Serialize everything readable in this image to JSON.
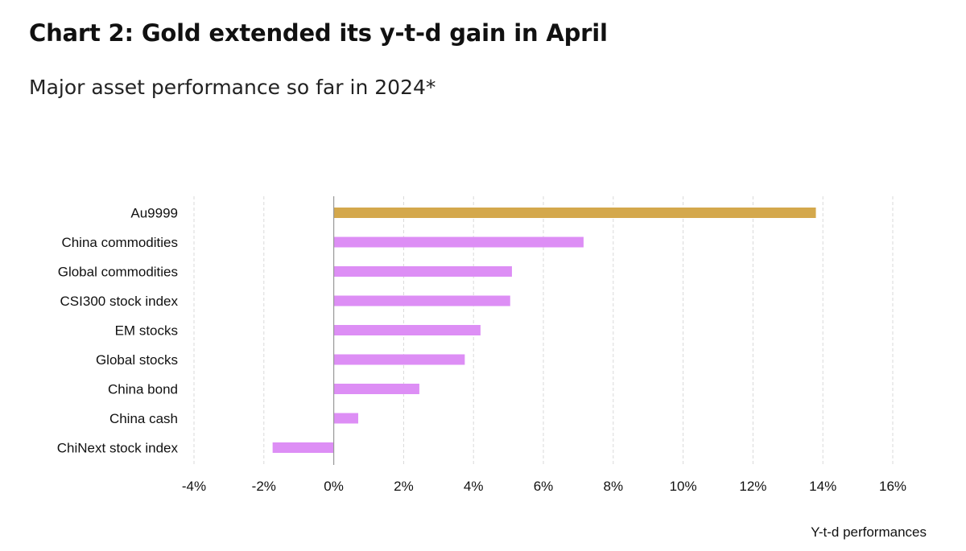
{
  "title": "Chart 2: Gold extended its y-t-d gain in April",
  "subtitle": "Major asset performance so far in 2024*",
  "chart_data": {
    "type": "bar",
    "orientation": "horizontal",
    "title": "Chart 2: Gold extended its y-t-d gain in April",
    "subtitle": "Major asset performance so far in 2024*",
    "xlabel": "Y-t-d performances",
    "ylabel": "",
    "categories": [
      "Au9999",
      "China commodities",
      "Global commodities",
      "CSI300 stock index",
      "EM stocks",
      "Global stocks",
      "China bond",
      "China cash",
      "ChiNext stock index"
    ],
    "values": [
      13.8,
      7.15,
      5.1,
      5.05,
      4.2,
      3.75,
      2.45,
      0.7,
      -1.75
    ],
    "bar_colors": [
      "#d4a84c",
      "#dd8ef5",
      "#dd8ef5",
      "#dd8ef5",
      "#dd8ef5",
      "#dd8ef5",
      "#dd8ef5",
      "#dd8ef5",
      "#dd8ef5"
    ],
    "xlim": [
      -4,
      16
    ],
    "xticks": [
      -4,
      -2,
      0,
      2,
      4,
      6,
      8,
      10,
      12,
      14,
      16
    ],
    "xtick_labels": [
      "-4%",
      "-2%",
      "0%",
      "2%",
      "4%",
      "6%",
      "8%",
      "10%",
      "12%",
      "14%",
      "16%"
    ],
    "grid": "vertical dashed",
    "legend": "none"
  }
}
